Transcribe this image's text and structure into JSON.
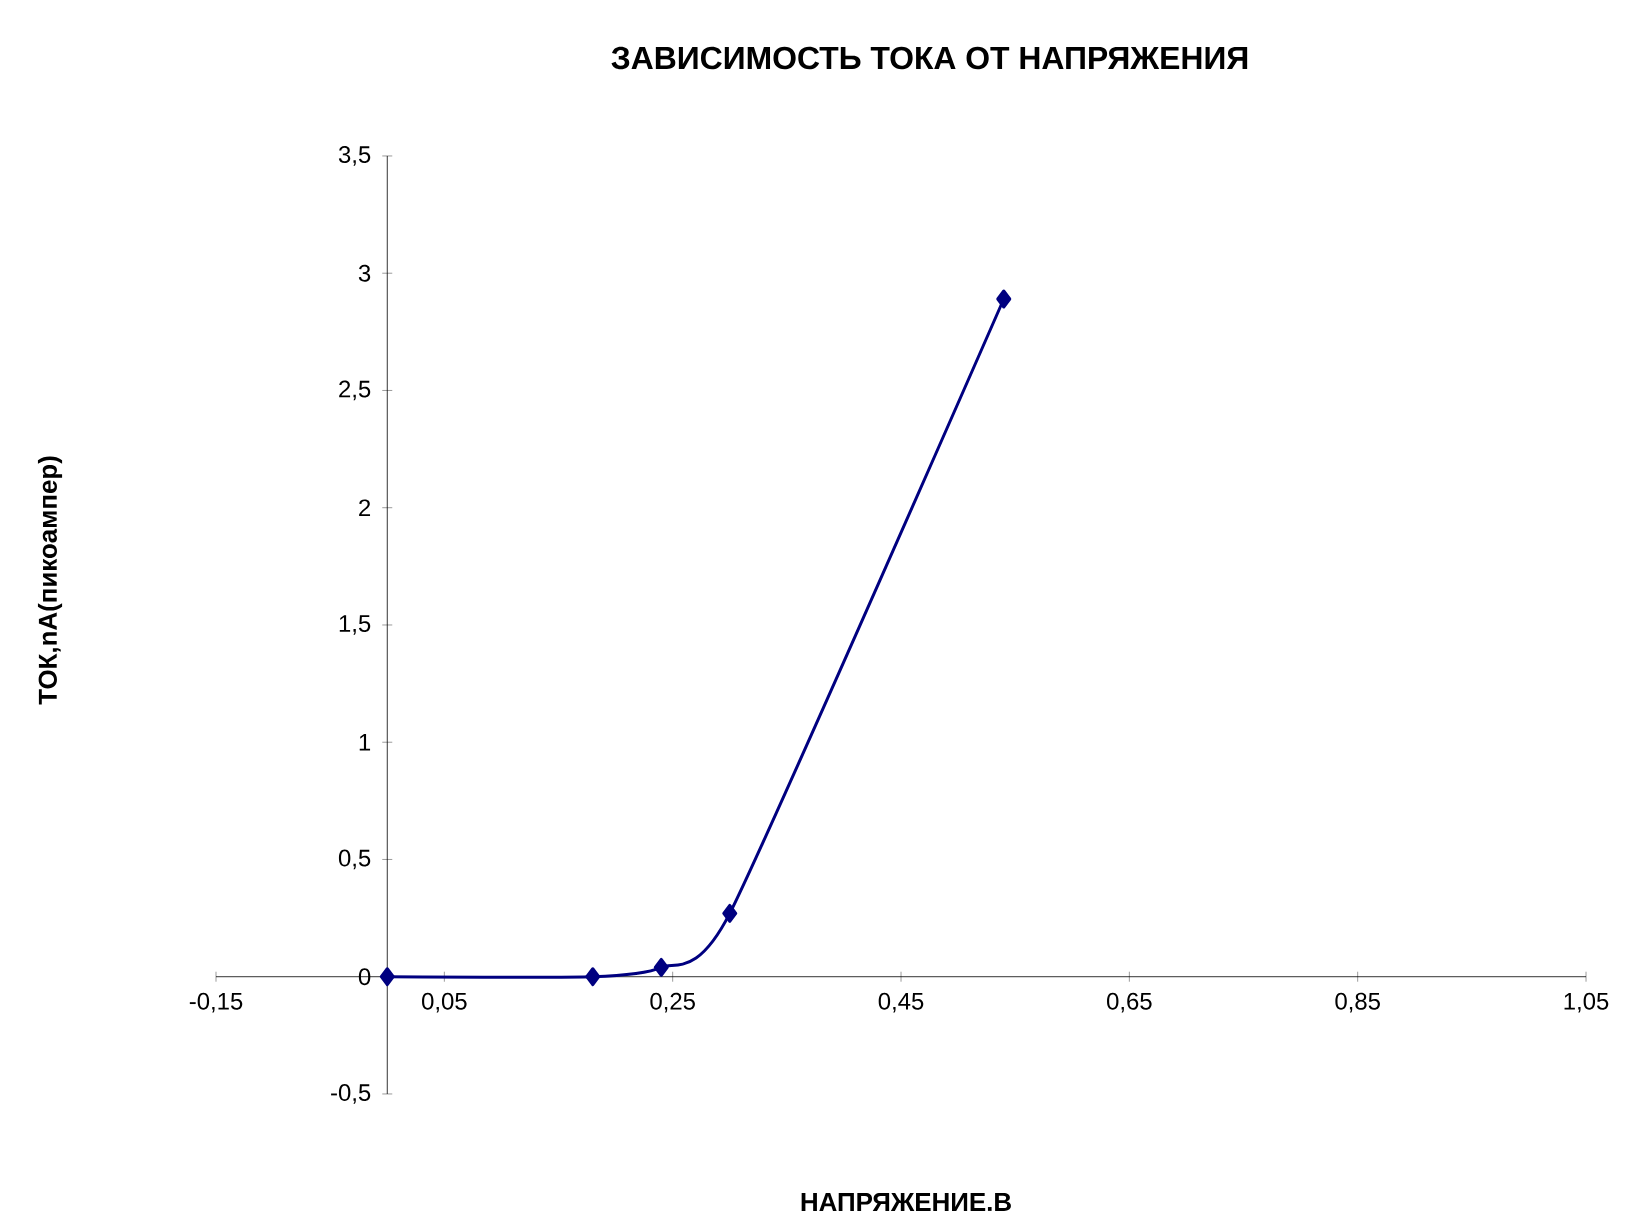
{
  "chart_data": {
    "type": "line",
    "title": "ЗАВИСИМОСТЬ ТОКА ОТ НАПРЯЖЕНИЯ",
    "xlabel": "НАПРЯЖЕНИЕ.В",
    "ylabel": "ТОК,nA(пикоампер)",
    "x": [
      0,
      0.18,
      0.24,
      0.3,
      0.54
    ],
    "values": [
      0,
      0,
      0.04,
      0.27,
      2.89
    ],
    "color": "#000080",
    "marker": "diamond",
    "line_style": "solid",
    "xlim": [
      -0.15,
      1.05
    ],
    "xticks": [
      {
        "value": -0.15,
        "label": "-0,15"
      },
      {
        "value": 0.05,
        "label": "0,05"
      },
      {
        "value": 0.25,
        "label": "0,25"
      },
      {
        "value": 0.45,
        "label": "0,45"
      },
      {
        "value": 0.65,
        "label": "0,65"
      },
      {
        "value": 0.85,
        "label": "0,85"
      },
      {
        "value": 1.05,
        "label": "1,05"
      }
    ],
    "ylim": [
      -0.5,
      3.5
    ],
    "yticks": [
      {
        "value": -0.5,
        "label": "-0,5"
      },
      0,
      {
        "value": 0.5,
        "label": "0,5"
      },
      1,
      {
        "value": 1.5,
        "label": "1,5"
      },
      2,
      {
        "value": 2.5,
        "label": "2,5"
      },
      3,
      {
        "value": 3.5,
        "label": "3,5"
      }
    ]
  }
}
